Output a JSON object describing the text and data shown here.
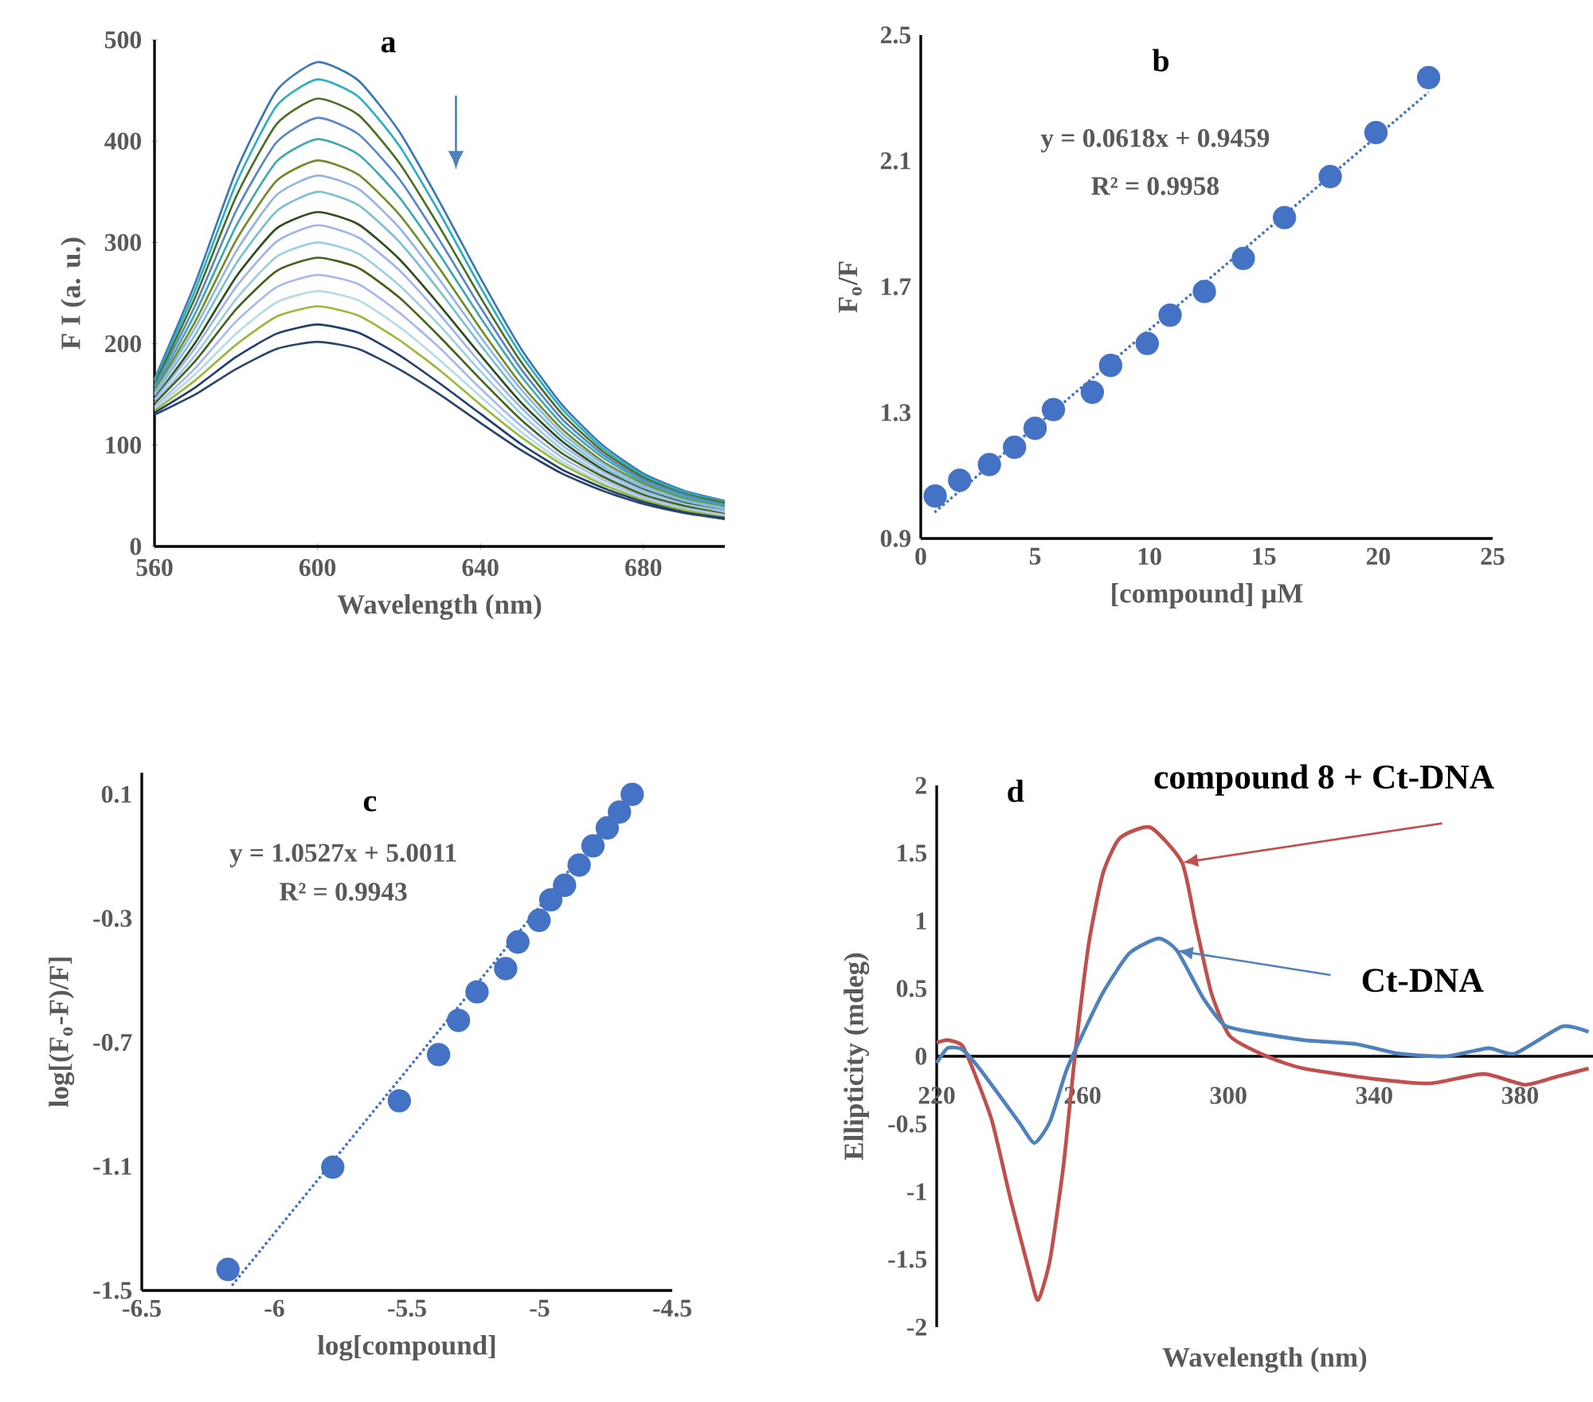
{
  "chart_data": [
    {
      "type": "line",
      "title": "a",
      "xlabel": "Wavelength (nm)",
      "ylabel": "F I (a. u.)",
      "xlim": [
        560,
        700
      ],
      "xticks": [
        560,
        600,
        640,
        680
      ],
      "ylim": [
        0,
        500
      ],
      "yticks": [
        0,
        100,
        200,
        300,
        400,
        500
      ],
      "x": [
        560,
        570,
        580,
        590,
        600,
        610,
        620,
        630,
        640,
        650,
        660,
        670,
        680,
        690,
        700
      ],
      "series": [
        {
          "color": "#3c78b4",
          "values": [
            165,
            260,
            370,
            450,
            478,
            460,
            410,
            340,
            265,
            195,
            140,
            100,
            72,
            55,
            45
          ]
        },
        {
          "color": "#2ab0c0",
          "values": [
            163,
            253,
            358,
            435,
            461,
            444,
            396,
            329,
            256,
            189,
            136,
            97,
            70,
            54,
            44
          ]
        },
        {
          "color": "#4b6e23",
          "values": [
            160,
            246,
            345,
            417,
            442,
            426,
            379,
            315,
            246,
            182,
            131,
            94,
            68,
            52,
            43
          ]
        },
        {
          "color": "#5a86c8",
          "values": [
            158,
            238,
            331,
            399,
            423,
            407,
            363,
            302,
            236,
            175,
            126,
            91,
            66,
            51,
            41
          ]
        },
        {
          "color": "#3fa8b0",
          "values": [
            155,
            230,
            316,
            380,
            402,
            387,
            345,
            288,
            226,
            168,
            121,
            88,
            64,
            49,
            40
          ]
        },
        {
          "color": "#6e8c28",
          "values": [
            153,
            222,
            302,
            361,
            381,
            367,
            328,
            274,
            215,
            160,
            116,
            84,
            62,
            47,
            39
          ]
        },
        {
          "color": "#93b4e6",
          "values": [
            151,
            216,
            291,
            347,
            366,
            353,
            315,
            263,
            207,
            155,
            112,
            82,
            60,
            46,
            38
          ]
        },
        {
          "color": "#78c0d2",
          "values": [
            149,
            209,
            279,
            331,
            350,
            337,
            301,
            252,
            199,
            149,
            108,
            79,
            58,
            45,
            37
          ]
        },
        {
          "color": "#2f4d1c",
          "values": [
            146,
            201,
            266,
            314,
            330,
            318,
            284,
            238,
            189,
            142,
            104,
            76,
            56,
            43,
            35
          ]
        },
        {
          "color": "#a0b4ec",
          "values": [
            145,
            196,
            256,
            301,
            317,
            305,
            273,
            229,
            181,
            137,
            100,
            74,
            55,
            42,
            35
          ]
        },
        {
          "color": "#9ccfe0",
          "values": [
            142,
            189,
            244,
            286,
            300,
            289,
            258,
            218,
            173,
            131,
            96,
            71,
            53,
            41,
            33
          ]
        },
        {
          "color": "#44621c",
          "values": [
            141,
            183,
            234,
            272,
            285,
            275,
            246,
            207,
            165,
            125,
            92,
            69,
            51,
            40,
            32
          ]
        },
        {
          "color": "#aab8f2",
          "values": [
            138,
            176,
            222,
            256,
            268,
            259,
            231,
            196,
            156,
            119,
            88,
            66,
            49,
            38,
            31
          ]
        },
        {
          "color": "#b4dce8",
          "values": [
            136,
            170,
            210,
            241,
            252,
            243,
            217,
            184,
            148,
            113,
            84,
            63,
            47,
            37,
            30
          ]
        },
        {
          "color": "#9ab83a",
          "values": [
            134,
            164,
            199,
            227,
            237,
            228,
            204,
            174,
            140,
            108,
            81,
            61,
            46,
            36,
            29
          ]
        },
        {
          "color": "#203f70",
          "values": [
            132,
            157,
            187,
            210,
            219,
            211,
            189,
            161,
            131,
            101,
            76,
            58,
            44,
            34,
            28
          ]
        },
        {
          "color": "#29456a",
          "values": [
            130,
            150,
            175,
            195,
            202,
            195,
            175,
            150,
            122,
            95,
            72,
            55,
            42,
            33,
            27
          ]
        }
      ]
    },
    {
      "type": "scatter",
      "title": "b",
      "xlabel": "[compound] µM",
      "ylabel": "F$_{o}$/F",
      "xlim": [
        0,
        25
      ],
      "xticks": [
        0,
        5,
        10,
        15,
        20,
        25
      ],
      "ylim": [
        0.9,
        2.5
      ],
      "yticks": [
        0.9,
        1.3,
        1.7,
        2.1,
        2.5
      ],
      "marker": "circle",
      "annotations": [
        "y = 0.0618x + 0.9459",
        "R² = 0.9958"
      ],
      "series": [
        {
          "color": "#4472c4",
          "x": [
            0.63,
            1.7,
            3.0,
            4.1,
            5.0,
            5.8,
            7.5,
            8.3,
            9.9,
            10.9,
            12.4,
            14.1,
            15.9,
            17.9,
            19.9,
            22.2
          ],
          "values": [
            1.035,
            1.085,
            1.135,
            1.19,
            1.25,
            1.31,
            1.365,
            1.45,
            1.52,
            1.61,
            1.685,
            1.79,
            1.92,
            2.05,
            2.19,
            2.365
          ]
        },
        {
          "type": "line",
          "line_style": "dotted",
          "marker": "none",
          "color": "#4472c4",
          "x": [
            0.6,
            22.2
          ],
          "values": [
            0.983,
            2.318
          ]
        }
      ]
    },
    {
      "type": "scatter",
      "title": "c",
      "xlabel": "log[compound]",
      "ylabel": "log[(F$_{o}$-F)/F]",
      "xlim": [
        -6.5,
        -4.5
      ],
      "xticks": [
        -6.5,
        -6,
        -5.5,
        -5,
        -4.5
      ],
      "ylim": [
        -1.5,
        0.17
      ],
      "yticks": [
        -1.5,
        -1.1,
        -0.7,
        -0.3,
        0.1
      ],
      "marker": "circle",
      "annotations": [
        "y = 1.0527x + 5.0011",
        "R² = 0.9943"
      ],
      "series": [
        {
          "color": "#4472c4",
          "x": [
            -6.175,
            -5.78,
            -5.529,
            -5.381,
            -5.306,
            -5.236,
            -5.128,
            -5.082,
            -5.002,
            -4.958,
            -4.906,
            -4.851,
            -4.799,
            -4.745,
            -4.699,
            -4.651
          ],
          "values": [
            -1.432,
            -1.102,
            -0.888,
            -0.739,
            -0.629,
            -0.537,
            -0.462,
            -0.376,
            -0.306,
            -0.24,
            -0.193,
            -0.128,
            -0.066,
            -0.008,
            0.043,
            0.1
          ]
        },
        {
          "type": "line",
          "line_style": "dotted",
          "marker": "none",
          "color": "#4472c4",
          "x": [
            -6.16,
            -4.64
          ],
          "values": [
            -1.484,
            0.117
          ]
        }
      ]
    },
    {
      "type": "line",
      "title": "d",
      "xlabel": "Wavelength (nm)",
      "ylabel": "Ellipticity (mdeg)",
      "xlim": [
        220,
        400
      ],
      "xticks": [
        220,
        260,
        300,
        340,
        380
      ],
      "ylim": [
        -2,
        2
      ],
      "yticks": [
        -2,
        -1.5,
        -1,
        -0.5,
        0,
        0.5,
        1,
        1.5,
        2
      ],
      "series": [
        {
          "name": "compound 8 + Ct-DNA",
          "color": "#c0504d",
          "x": [
            220,
            223,
            227,
            230,
            235.2,
            240.3,
            245.3,
            247.8,
            251.1,
            254.8,
            257.9,
            261.7,
            265.6,
            270.2,
            278.6,
            287.3,
            291,
            295.3,
            300.4,
            310.5,
            320.6,
            340.9,
            355.4,
            370,
            381.4,
            390.1,
            398.8
          ],
          "values": [
            0.1,
            0.12,
            0.08,
            -0.1,
            -0.48,
            -1.06,
            -1.58,
            -1.8,
            -1.5,
            -0.8,
            0,
            0.83,
            1.35,
            1.61,
            1.69,
            1.43,
            0.98,
            0.47,
            0.15,
            0,
            -0.09,
            -0.17,
            -0.2,
            -0.13,
            -0.21,
            -0.15,
            -0.09
          ]
        },
        {
          "name": "Ct-DNA",
          "color": "#4f81bd",
          "x": [
            220,
            223,
            227,
            232,
            242.4,
            246.8,
            251.1,
            255.5,
            259.8,
            265.6,
            272.8,
            280.8,
            285.9,
            293.1,
            298.9,
            306.2,
            320.6,
            335.1,
            346.7,
            359.7,
            371.3,
            378.6,
            391.6,
            398.8
          ],
          "values": [
            -0.05,
            0.06,
            0.05,
            -0.1,
            -0.48,
            -0.64,
            -0.48,
            -0.11,
            0.15,
            0.47,
            0.76,
            0.87,
            0.78,
            0.43,
            0.23,
            0.18,
            0.12,
            0.09,
            0.02,
            0.0,
            0.06,
            0.02,
            0.22,
            0.18
          ]
        }
      ]
    }
  ]
}
